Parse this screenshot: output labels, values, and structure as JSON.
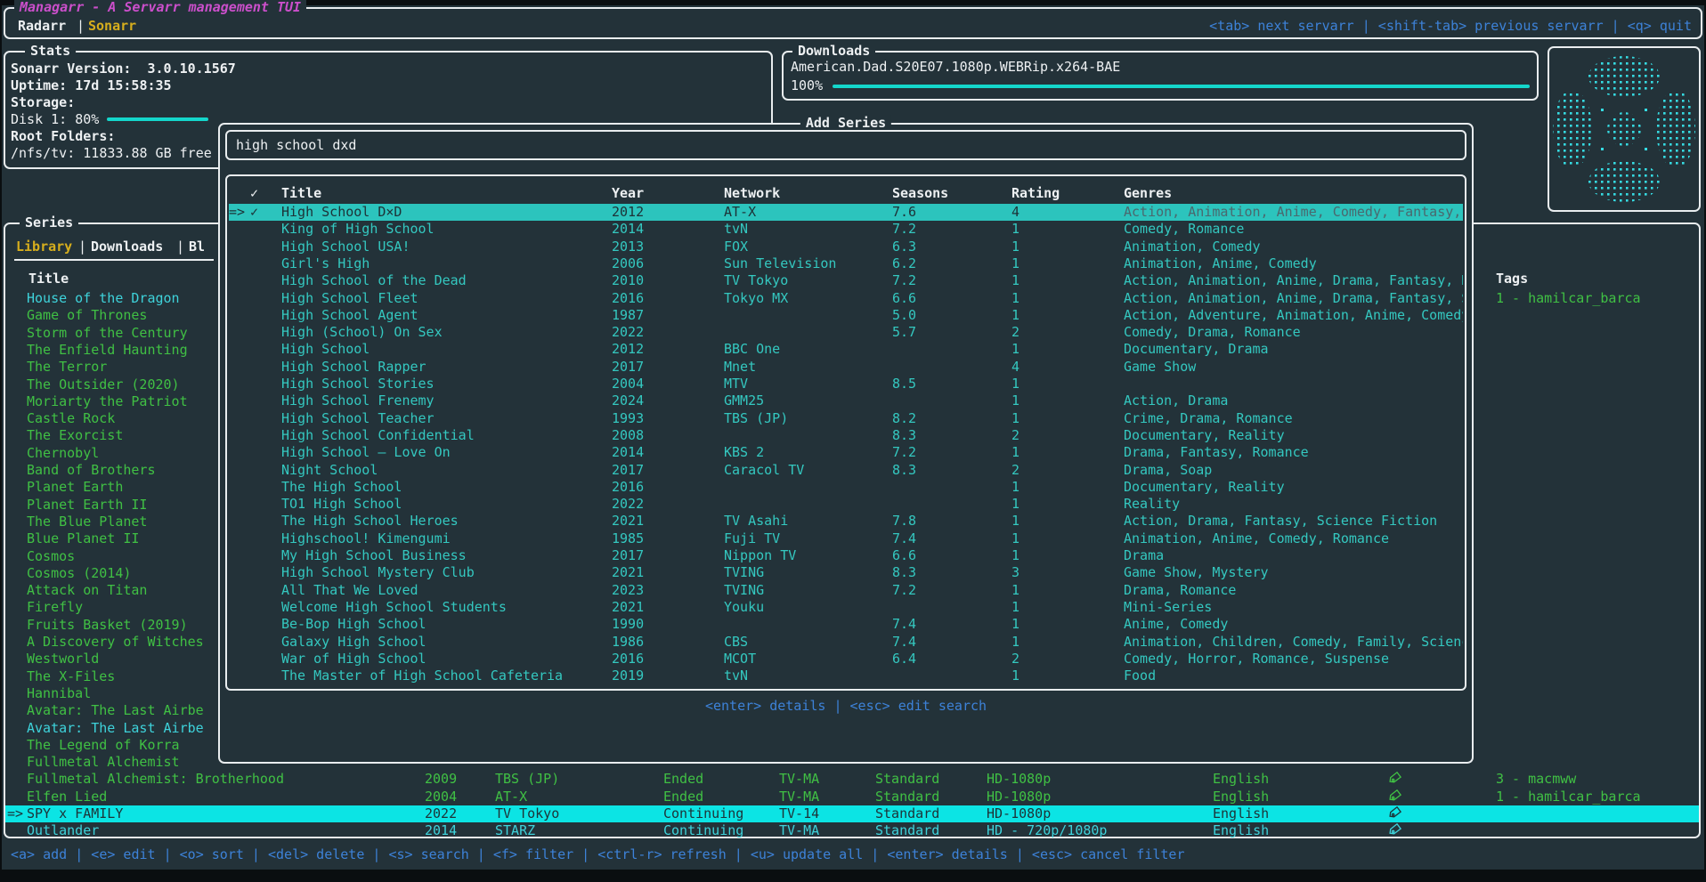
{
  "app": {
    "title": "Managarr - A Servarr management TUI"
  },
  "header": {
    "tabs": [
      {
        "label": "Radarr",
        "active": false
      },
      {
        "label": "Sonarr",
        "active": true
      }
    ],
    "separator": "|",
    "help": "<tab> next servarr | <shift-tab> previous servarr | <q> quit"
  },
  "stats": {
    "box_title": "Stats",
    "version_label": "Sonarr Version:",
    "version_value": "3.0.10.1567",
    "uptime_label": "Uptime:",
    "uptime_value": "17d 15:58:35",
    "storage_label": "Storage:",
    "disk_label": "Disk 1: 80%",
    "disk_percent": 80,
    "root_folders_label": "Root Folders:",
    "root_folders_value": "/nfs/tv: 11833.88 GB free"
  },
  "downloads": {
    "box_title": "Downloads",
    "item_name": "American.Dad.S20E07.1080p.WEBRip.x264-BAE",
    "progress_label": "100%",
    "progress_percent": 100
  },
  "add_series": {
    "box_title": "Add Series",
    "search_value": "high school dxd",
    "hint": "<enter> details | <esc> edit search",
    "columns": [
      "✓",
      "Title",
      "Year",
      "Network",
      "Seasons",
      "Rating",
      "Genres"
    ],
    "rows": [
      {
        "selected": true,
        "checked": "✓",
        "title": "High School D×D",
        "year": "2012",
        "network": "AT-X",
        "seasons": "7.6",
        "rating": "4",
        "genres": "Action, Animation, Anime, Comedy, Fantasy,"
      },
      {
        "title": "King of High School",
        "year": "2014",
        "network": "tvN",
        "seasons": "7.2",
        "rating": "1",
        "genres": "Comedy, Romance"
      },
      {
        "title": "High School USA!",
        "year": "2013",
        "network": "FOX",
        "seasons": "6.3",
        "rating": "1",
        "genres": "Animation, Comedy"
      },
      {
        "title": "Girl's High",
        "year": "2006",
        "network": "Sun Television",
        "seasons": "6.2",
        "rating": "1",
        "genres": "Animation, Anime, Comedy"
      },
      {
        "title": "High School of the Dead",
        "year": "2010",
        "network": "TV Tokyo",
        "seasons": "7.2",
        "rating": "1",
        "genres": "Action, Animation, Anime, Drama, Fantasy, H"
      },
      {
        "title": "High School Fleet",
        "year": "2016",
        "network": "Tokyo MX",
        "seasons": "6.6",
        "rating": "1",
        "genres": "Action, Animation, Anime, Drama, Fantasy, S"
      },
      {
        "title": "High School Agent",
        "year": "1987",
        "network": "",
        "seasons": "5.0",
        "rating": "1",
        "genres": "Action, Adventure, Animation, Anime, Comedy"
      },
      {
        "title": "High (School) On Sex",
        "year": "2022",
        "network": "",
        "seasons": "5.7",
        "rating": "2",
        "genres": "Comedy, Drama, Romance"
      },
      {
        "title": "High School",
        "year": "2012",
        "network": "BBC One",
        "seasons": "",
        "rating": "1",
        "genres": "Documentary, Drama"
      },
      {
        "title": "High School Rapper",
        "year": "2017",
        "network": "Mnet",
        "seasons": "",
        "rating": "4",
        "genres": "Game Show"
      },
      {
        "title": "High School Stories",
        "year": "2004",
        "network": "MTV",
        "seasons": "8.5",
        "rating": "1",
        "genres": ""
      },
      {
        "title": "High School Frenemy",
        "year": "2024",
        "network": "GMM25",
        "seasons": "",
        "rating": "1",
        "genres": "Action, Drama"
      },
      {
        "title": "High School Teacher",
        "year": "1993",
        "network": "TBS (JP)",
        "seasons": "8.2",
        "rating": "1",
        "genres": "Crime, Drama, Romance"
      },
      {
        "title": "High School Confidential",
        "year": "2008",
        "network": "",
        "seasons": "8.3",
        "rating": "2",
        "genres": "Documentary, Reality"
      },
      {
        "title": "High School – Love On",
        "year": "2014",
        "network": "KBS 2",
        "seasons": "7.2",
        "rating": "1",
        "genres": "Drama, Fantasy, Romance"
      },
      {
        "title": "Night School",
        "year": "2017",
        "network": "Caracol TV",
        "seasons": "8.3",
        "rating": "2",
        "genres": "Drama, Soap"
      },
      {
        "title": "The High School",
        "year": "2016",
        "network": "",
        "seasons": "",
        "rating": "1",
        "genres": "Documentary, Reality"
      },
      {
        "title": "TO1 High School",
        "year": "2022",
        "network": "",
        "seasons": "",
        "rating": "1",
        "genres": "Reality"
      },
      {
        "title": "The High School Heroes",
        "year": "2021",
        "network": "TV Asahi",
        "seasons": "7.8",
        "rating": "1",
        "genres": "Action, Drama, Fantasy, Science Fiction"
      },
      {
        "title": "Highschool! Kimengumi",
        "year": "1985",
        "network": "Fuji TV",
        "seasons": "7.4",
        "rating": "1",
        "genres": "Animation, Anime, Comedy, Romance"
      },
      {
        "title": "My High School Business",
        "year": "2017",
        "network": "Nippon TV",
        "seasons": "6.6",
        "rating": "1",
        "genres": "Drama"
      },
      {
        "title": "High School Mystery Club",
        "year": "2021",
        "network": "TVING",
        "seasons": "8.3",
        "rating": "3",
        "genres": "Game Show, Mystery"
      },
      {
        "title": "All That We Loved",
        "year": "2023",
        "network": "TVING",
        "seasons": "7.2",
        "rating": "1",
        "genres": "Drama, Romance"
      },
      {
        "title": "Welcome High School Students",
        "year": "2021",
        "network": "Youku",
        "seasons": "",
        "rating": "1",
        "genres": "Mini-Series"
      },
      {
        "title": "Be-Bop High School",
        "year": "1990",
        "network": "",
        "seasons": "7.4",
        "rating": "1",
        "genres": "Anime, Comedy"
      },
      {
        "title": "Galaxy High School",
        "year": "1986",
        "network": "CBS",
        "seasons": "7.4",
        "rating": "1",
        "genres": "Animation, Children, Comedy, Family, Scienc"
      },
      {
        "title": "War of High School",
        "year": "2016",
        "network": "MCOT",
        "seasons": "6.4",
        "rating": "2",
        "genres": "Comedy, Horror, Romance, Suspense"
      },
      {
        "title": "The Master of High School Cafeteria",
        "year": "2019",
        "network": "tvN",
        "seasons": "",
        "rating": "1",
        "genres": "Food"
      }
    ]
  },
  "library": {
    "box_title": "Series",
    "tabs": [
      "Library",
      "Downloads",
      "Bl"
    ],
    "active_tab": "Library",
    "separator": "|",
    "title_header": "Title",
    "tags_header": "Tags",
    "items": [
      {
        "title": "House of the Dragon",
        "color": "cyan",
        "tags": "1 - hamilcar_barca"
      },
      {
        "title": "Game of Thrones",
        "color": "green"
      },
      {
        "title": "Storm of the Century",
        "color": "green"
      },
      {
        "title": "The Enfield Haunting",
        "color": "green"
      },
      {
        "title": "The Terror",
        "color": "green"
      },
      {
        "title": "The Outsider (2020)",
        "color": "green"
      },
      {
        "title": "Moriarty the Patriot",
        "color": "green"
      },
      {
        "title": "Castle Rock",
        "color": "green"
      },
      {
        "title": "The Exorcist",
        "color": "green"
      },
      {
        "title": "Chernobyl",
        "color": "green"
      },
      {
        "title": "Band of Brothers",
        "color": "green"
      },
      {
        "title": "Planet Earth",
        "color": "green"
      },
      {
        "title": "Planet Earth II",
        "color": "green"
      },
      {
        "title": "The Blue Planet",
        "color": "green"
      },
      {
        "title": "Blue Planet II",
        "color": "green"
      },
      {
        "title": "Cosmos",
        "color": "green"
      },
      {
        "title": "Cosmos (2014)",
        "color": "green"
      },
      {
        "title": "Attack on Titan",
        "color": "green"
      },
      {
        "title": "Firefly",
        "color": "green"
      },
      {
        "title": "Fruits Basket (2019)",
        "color": "green"
      },
      {
        "title": "A Discovery of Witches",
        "color": "green"
      },
      {
        "title": "Westworld",
        "color": "green"
      },
      {
        "title": "The X-Files",
        "color": "green"
      },
      {
        "title": "Hannibal",
        "color": "green"
      },
      {
        "title": "Avatar: The Last Airbe",
        "color": "green"
      },
      {
        "title": "Avatar: The Last Airbe",
        "color": "cyan"
      },
      {
        "title": "The Legend of Korra",
        "color": "green"
      },
      {
        "title": "Fullmetal Alchemist",
        "color": "green"
      },
      {
        "title": "Fullmetal Alchemist: Brotherhood",
        "color": "green",
        "year": "2009",
        "network": "TBS (JP)",
        "status": "Ended",
        "cert": "TV-MA",
        "profile": "Standard",
        "quality": "HD-1080p",
        "language": "English",
        "tags": "3 - macmww"
      },
      {
        "title": "Elfen Lied",
        "color": "green",
        "year": "2004",
        "network": "AT-X",
        "status": "Ended",
        "cert": "TV-MA",
        "profile": "Standard",
        "quality": "HD-1080p",
        "language": "English",
        "tags": "1 - hamilcar_barca"
      },
      {
        "title": "SPY x FAMILY",
        "selected": true,
        "year": "2022",
        "network": "TV Tokyo",
        "status": "Continuing",
        "cert": "TV-14",
        "profile": "Standard",
        "quality": "HD-1080p",
        "language": "English",
        "tags": ""
      },
      {
        "title": "Outlander",
        "color": "cyan",
        "year": "2014",
        "network": "STARZ",
        "status": "Continuing",
        "cert": "TV-MA",
        "profile": "Standard",
        "quality": "HD - 720p/1080p",
        "language": "English",
        "tags": ""
      }
    ]
  },
  "footer": {
    "help": "<a> add | <e> edit | <o> sort | <del> delete | <s> search | <f> filter | <ctrl-r> refresh | <u> update all | <enter> details | <esc> cancel filter"
  },
  "colors": {
    "accent_cyan": "#14d6cb",
    "selection_teal": "#2cc4bd",
    "selection_bright": "#0ce4e4",
    "green": "#40c044",
    "teal": "#34c8c0",
    "cyan": "#3ed2da",
    "yellow": "#d6ae1d",
    "magenta": "#cb4fcb",
    "blue": "#3d82d8"
  }
}
